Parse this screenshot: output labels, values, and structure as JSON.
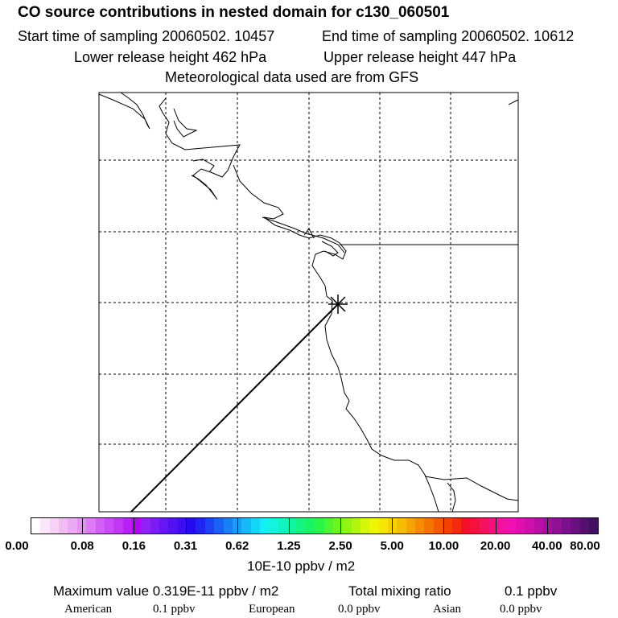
{
  "header": {
    "title": "CO  source contributions in nested domain for c130_060501",
    "start_time": "Start time of sampling 20060502. 10457",
    "end_time": "End time of sampling 20060502. 10612",
    "lower_height": "Lower release height  462 hPa",
    "upper_height": "Upper release height  447 hPa",
    "met_data": "Meteorological data used are from GFS"
  },
  "map": {
    "marker_icon": "asterisk-release-point-icon",
    "grid_style": "dashed",
    "line_color": "#000000"
  },
  "colorbar": {
    "tick_labels": [
      "0.00",
      "0.08",
      "0.16",
      "0.31",
      "0.62",
      "1.25",
      "2.50",
      "5.00",
      "10.00",
      "20.00",
      "40.00",
      "80.00"
    ],
    "colors": [
      "#ffffff",
      "#fbe6fb",
      "#f7d2f7",
      "#f2bdf2",
      "#edaaf4",
      "#e592f5",
      "#dd7af5",
      "#d15ff5",
      "#c94bf5",
      "#c236f6",
      "#ba1ff6",
      "#af08f5",
      "#8f22f5",
      "#7a1cf3",
      "#6516f2",
      "#4f12f0",
      "#3a0ef0",
      "#240aef",
      "#1f25f0",
      "#1c43f2",
      "#1a62f5",
      "#1880f5",
      "#169ff5",
      "#14b9f6",
      "#12d6f5",
      "#10f0f5",
      "#10f5dc",
      "#10f5c0",
      "#12f5a0",
      "#14f580",
      "#18f562",
      "#28f545",
      "#4cf530",
      "#6ef51c",
      "#92f510",
      "#b4f50c",
      "#d6f508",
      "#f0f500",
      "#f5e600",
      "#f5d000",
      "#f5bc00",
      "#f5a400",
      "#f58c00",
      "#f57400",
      "#f55a00",
      "#f54200",
      "#f52a10",
      "#f5102a",
      "#f51040",
      "#f51060",
      "#f51080",
      "#f510a0",
      "#f010b0",
      "#e010b0",
      "#cc10aa",
      "#b810a4",
      "#a4109c",
      "#901094",
      "#7c108c",
      "#681080",
      "#54106e",
      "#40105e"
    ],
    "units": "10E-10 ppbv / m2"
  },
  "footer": {
    "max_value": "Maximum value  0.319E-11 ppbv / m2",
    "total_label": "Total mixing ratio",
    "total_value": "0.1 ppbv",
    "american_label": "American",
    "american_value": "0.1 ppbv",
    "european_label": "European",
    "european_value": "0.0 ppbv",
    "asian_label": "Asian",
    "asian_value": "0.0 ppbv"
  }
}
